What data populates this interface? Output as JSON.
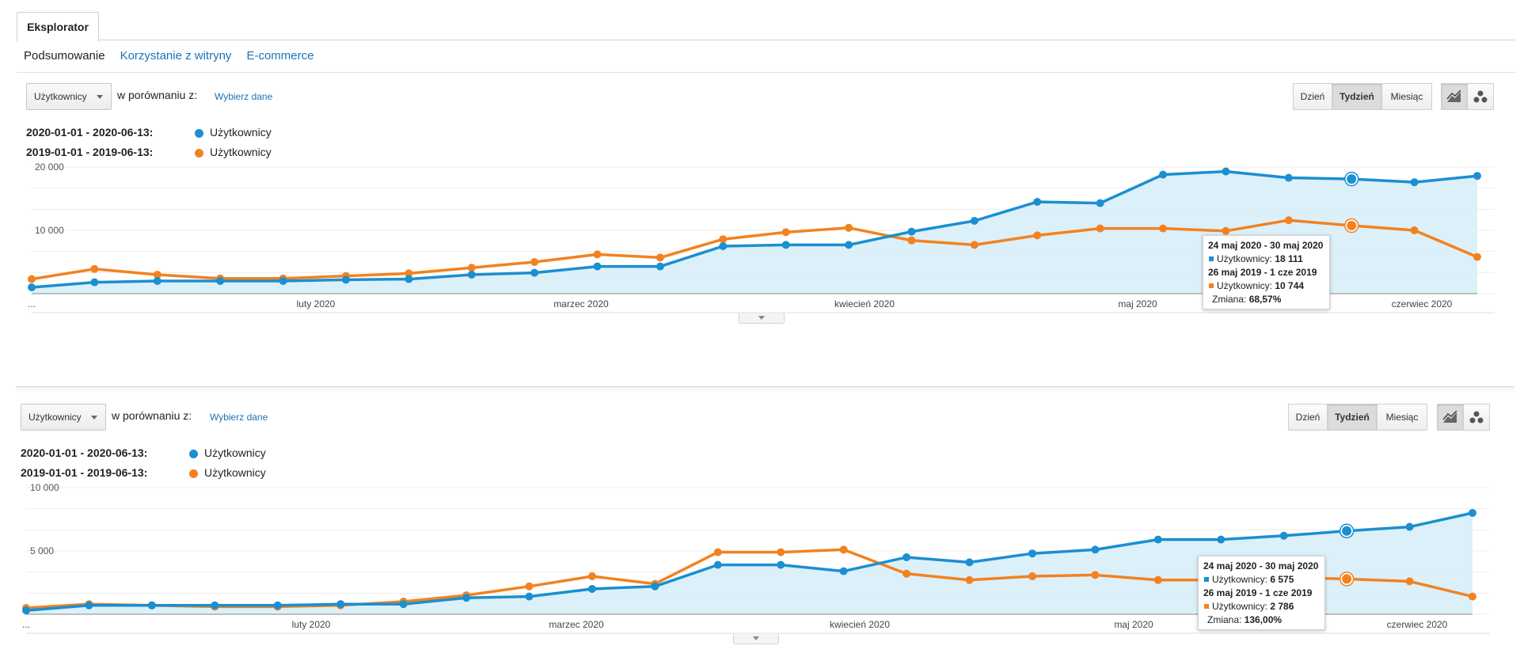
{
  "tabs": {
    "explorer": "Eksplorator"
  },
  "subnav": {
    "summary": "Podsumowanie",
    "site_usage": "Korzystanie z witryny",
    "ecommerce": "E-commerce"
  },
  "colors": {
    "current": "#1b8fd0",
    "previous": "#f28220",
    "area": "#d8eef8",
    "link": "#1a73b8"
  },
  "panels": [
    {
      "metric_label": "Użytkownicy",
      "compare_text": "w porównaniu z:",
      "choose_link": "Wybierz dane",
      "buttons": {
        "day": "Dzień",
        "week": "Tydzień",
        "month": "Miesiąc"
      },
      "icons": [
        "line-chart-icon",
        "motion-chart-icon"
      ],
      "legend": [
        {
          "range": "2020-01-01 - 2020-06-13:",
          "label": "Użytkownicy"
        },
        {
          "range": "2019-01-01 - 2019-06-13:",
          "label": "Użytkownicy"
        }
      ],
      "tooltip": {
        "range1": "24 maj 2020 - 30 maj 2020",
        "row1": "Użytkownicy:",
        "val1": "18 111",
        "range2": "26 maj 2019 - 1 cze 2019",
        "row2": "Użytkownicy:",
        "val2": "10 744",
        "change_label": "Zmiana:",
        "change_val": "68,57%"
      }
    },
    {
      "metric_label": "Użytkownicy",
      "compare_text": "w porównaniu z:",
      "choose_link": "Wybierz dane",
      "buttons": {
        "day": "Dzień",
        "week": "Tydzień",
        "month": "Miesiąc"
      },
      "icons": [
        "line-chart-icon",
        "motion-chart-icon"
      ],
      "legend": [
        {
          "range": "2020-01-01 - 2020-06-13:",
          "label": "Użytkownicy"
        },
        {
          "range": "2019-01-01 - 2019-06-13:",
          "label": "Użytkownicy"
        }
      ],
      "tooltip": {
        "range1": "24 maj 2020 - 30 maj 2020",
        "row1": "Użytkownicy:",
        "val1": "6 575",
        "range2": "26 maj 2019 - 1 cze 2019",
        "row2": "Użytkownicy:",
        "val2": "2 786",
        "change_label": "Zmiana:",
        "change_val": "136,00%"
      }
    }
  ],
  "chart_data": [
    {
      "type": "line",
      "x_labels": [
        "...",
        "luty 2020",
        "marzec 2020",
        "kwiecień 2020",
        "maj 2020",
        "czerwiec 2020"
      ],
      "y_ticks": [
        "10 000",
        "20 000"
      ],
      "ylim": [
        0,
        20000
      ],
      "grid": true,
      "highlight_index": 21,
      "series": [
        {
          "name": "Użytkownicy",
          "period": "2020-01-01 - 2020-06-13",
          "values": [
            1000,
            1800,
            2000,
            2000,
            2000,
            2200,
            2300,
            3000,
            3300,
            4300,
            4300,
            7500,
            7700,
            7700,
            9800,
            11500,
            14500,
            14300,
            18800,
            19300,
            18300,
            18111,
            17600,
            18600
          ]
        },
        {
          "name": "Użytkownicy",
          "period": "2019-01-01 - 2019-06-13",
          "values": [
            2300,
            3900,
            3000,
            2400,
            2400,
            2800,
            3200,
            4100,
            5000,
            6200,
            5700,
            8600,
            9700,
            10400,
            8400,
            7700,
            9200,
            10300,
            10300,
            9900,
            11600,
            10744,
            10000,
            5800
          ]
        }
      ]
    },
    {
      "type": "line",
      "x_labels": [
        "...",
        "luty 2020",
        "marzec 2020",
        "kwiecień 2020",
        "maj 2020",
        "czerwiec 2020"
      ],
      "y_ticks": [
        "5 000",
        "10 000"
      ],
      "ylim": [
        0,
        10000
      ],
      "grid": true,
      "highlight_index": 21,
      "series": [
        {
          "name": "Użytkownicy",
          "period": "2020-01-01 - 2020-06-13",
          "values": [
            300,
            700,
            700,
            700,
            700,
            800,
            800,
            1300,
            1400,
            2000,
            2200,
            3900,
            3900,
            3400,
            4500,
            4100,
            4800,
            5100,
            5900,
            5900,
            6200,
            6575,
            6900,
            8000
          ]
        },
        {
          "name": "Użytkownicy",
          "period": "2019-01-01 - 2019-06-13",
          "values": [
            500,
            800,
            700,
            600,
            600,
            700,
            1000,
            1500,
            2200,
            3000,
            2400,
            4900,
            4900,
            5100,
            3200,
            2700,
            3000,
            3100,
            2700,
            2700,
            2900,
            2786,
            2600,
            1400
          ]
        }
      ]
    }
  ]
}
